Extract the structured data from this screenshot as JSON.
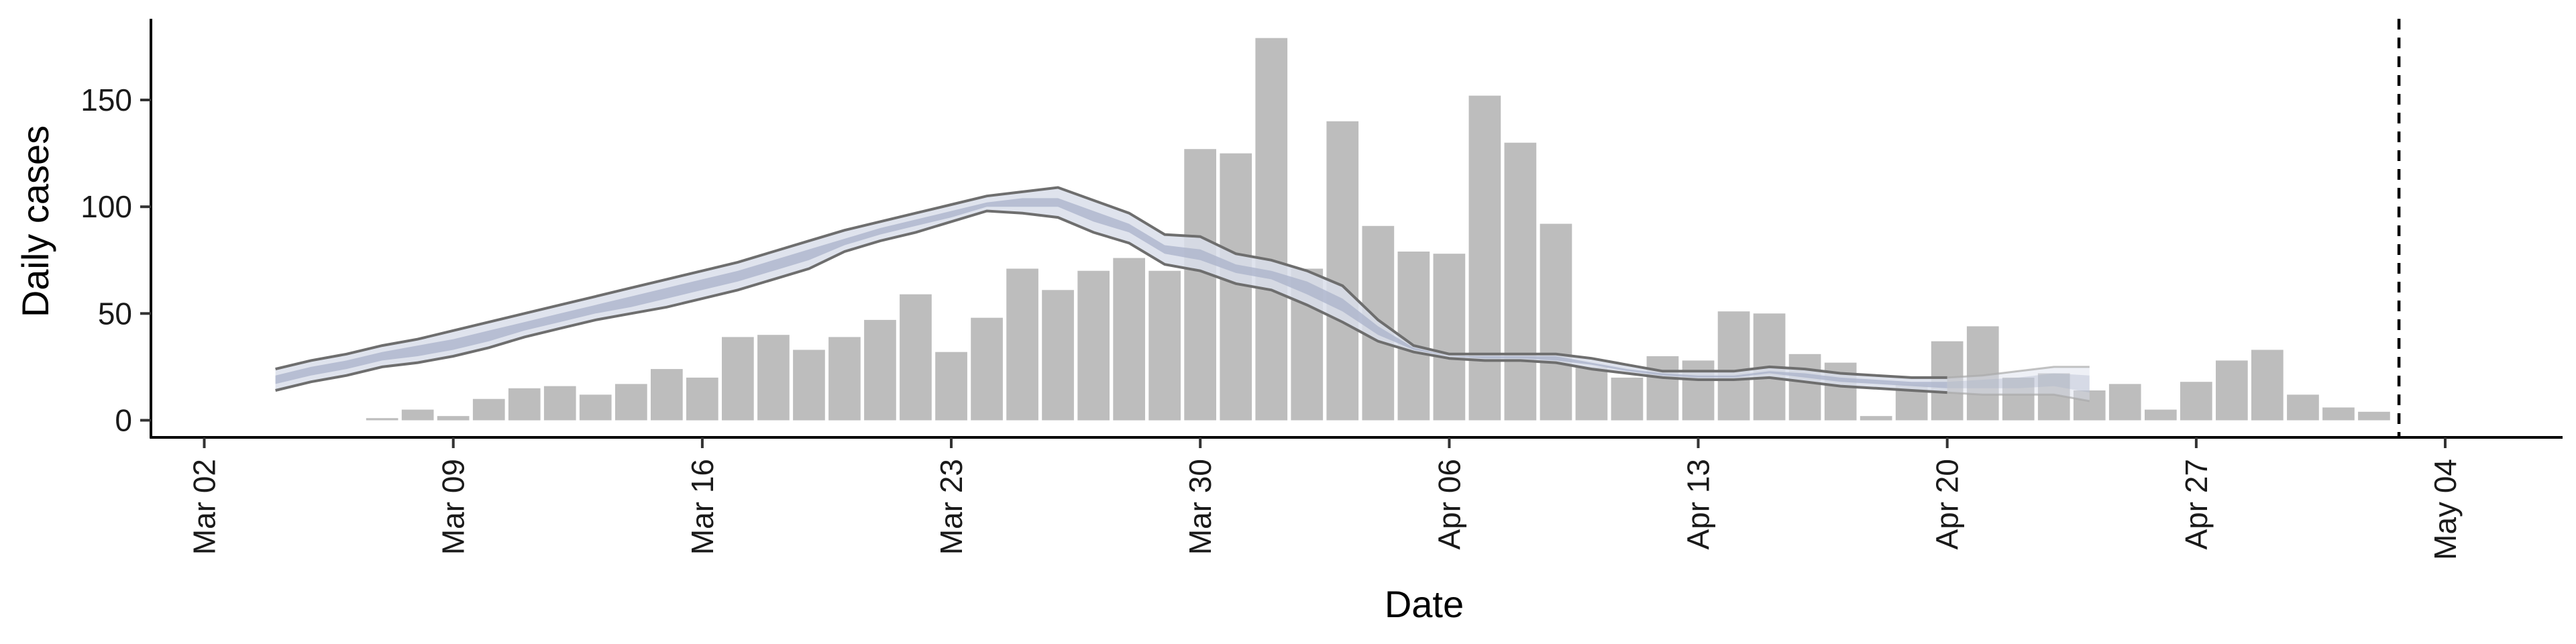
{
  "chart_data": {
    "type": "bar",
    "title": "",
    "xlabel": "Date",
    "ylabel": "Daily cases",
    "ylim": [
      -8,
      188
    ],
    "yticks": [
      0,
      50,
      100,
      150
    ],
    "x_start_date": "2020-03-02",
    "xlim_days": [
      -1.5,
      66.3
    ],
    "xticks": [
      {
        "day": 0,
        "label": "Mar 02"
      },
      {
        "day": 7,
        "label": "Mar 09"
      },
      {
        "day": 14,
        "label": "Mar 16"
      },
      {
        "day": 21,
        "label": "Mar 23"
      },
      {
        "day": 28,
        "label": "Mar 30"
      },
      {
        "day": 35,
        "label": "Apr 06"
      },
      {
        "day": 42,
        "label": "Apr 13"
      },
      {
        "day": 49,
        "label": "Apr 20"
      },
      {
        "day": 56,
        "label": "Apr 27"
      },
      {
        "day": 63,
        "label": "May 04"
      }
    ],
    "bars": {
      "name": "Reported daily cases",
      "color": "#bdbdbd",
      "first_day": 5,
      "values": [
        1,
        5,
        2,
        10,
        15,
        16,
        12,
        17,
        24,
        20,
        39,
        40,
        33,
        39,
        47,
        59,
        32,
        48,
        71,
        61,
        70,
        76,
        70,
        127,
        125,
        179,
        71,
        140,
        91,
        79,
        78,
        152,
        130,
        92,
        25,
        20,
        30,
        28,
        51,
        50,
        31,
        27,
        2,
        17,
        37,
        44,
        20,
        22,
        14,
        17,
        5,
        18,
        28,
        33,
        12,
        6,
        4
      ]
    },
    "estimate": {
      "name": "Estimated infections",
      "band_color": "#d9deea",
      "inner_band_color": "#a9b2c9",
      "line_color": "#6e6e6e",
      "faded_from_day": 49,
      "days": [
        2,
        3,
        4,
        5,
        6,
        7,
        8,
        9,
        10,
        11,
        12,
        13,
        14,
        15,
        16,
        17,
        18,
        19,
        20,
        21,
        22,
        23,
        24,
        25,
        26,
        27,
        28,
        29,
        30,
        31,
        32,
        33,
        34,
        35,
        36,
        37,
        38,
        39,
        40,
        41,
        42,
        43,
        44,
        45,
        46,
        47,
        48,
        49,
        50,
        51,
        52,
        53
      ],
      "upper": [
        24,
        28,
        31,
        35,
        38,
        42,
        46,
        50,
        54,
        58,
        62,
        66,
        70,
        74,
        79,
        84,
        89,
        93,
        97,
        101,
        105,
        107,
        109,
        103,
        97,
        87,
        86,
        78,
        75,
        70,
        63,
        47,
        35,
        31,
        31,
        31,
        31,
        29,
        26,
        23,
        23,
        23,
        25,
        24,
        22,
        21,
        20,
        20,
        21,
        23,
        25,
        25
      ],
      "lower": [
        14,
        18,
        21,
        25,
        27,
        30,
        34,
        39,
        43,
        47,
        50,
        53,
        57,
        61,
        66,
        71,
        79,
        84,
        88,
        93,
        98,
        97,
        95,
        88,
        83,
        73,
        70,
        64,
        61,
        54,
        46,
        37,
        32,
        29,
        28,
        28,
        27,
        24,
        22,
        20,
        19,
        19,
        20,
        18,
        16,
        15,
        14,
        13,
        12,
        12,
        12,
        9
      ],
      "inner_upper": [
        21,
        25,
        28,
        32,
        35,
        38,
        42,
        46,
        50,
        54,
        58,
        62,
        66,
        70,
        75,
        80,
        85,
        90,
        94,
        98,
        102,
        104,
        104,
        98,
        92,
        82,
        80,
        73,
        70,
        65,
        57,
        44,
        34,
        30,
        30,
        30,
        30,
        27,
        24,
        22,
        21,
        21,
        23,
        22,
        20,
        19,
        18,
        18,
        19,
        20,
        22,
        21
      ],
      "inner_lower": [
        17,
        21,
        24,
        28,
        30,
        33,
        37,
        42,
        46,
        50,
        53,
        57,
        61,
        65,
        70,
        75,
        82,
        87,
        91,
        95,
        100,
        100,
        100,
        93,
        88,
        78,
        75,
        69,
        66,
        59,
        51,
        40,
        33,
        30,
        29,
        29,
        28,
        26,
        23,
        21,
        20,
        20,
        22,
        20,
        18,
        17,
        16,
        15,
        15,
        15,
        16,
        13
      ]
    },
    "vline": {
      "day": 61.7,
      "style": "dashed",
      "color": "#000000"
    },
    "grid": false,
    "legend": "none"
  }
}
